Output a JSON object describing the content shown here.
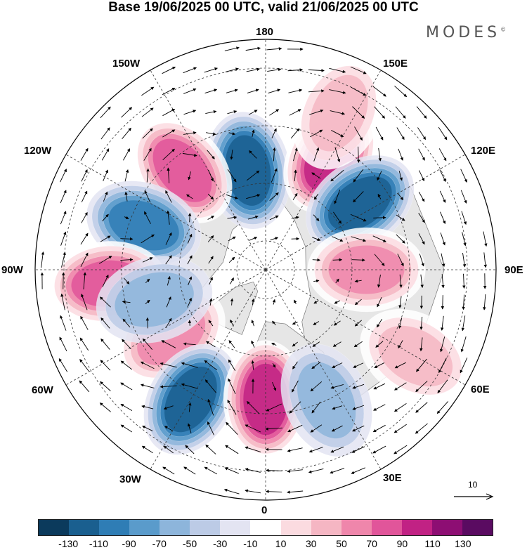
{
  "title": "Base 19/06/2025 00 UTC, valid 21/06/2025 00 UTC",
  "brand": "MODES",
  "brand_mark": "©",
  "longitude_labels": {
    "lon_180": "180",
    "lon_150E": "150E",
    "lon_120E": "120E",
    "lon_90E": "90E",
    "lon_60E": "60E",
    "lon_30E": "30E",
    "lon_0": "0",
    "lon_30W": "30W",
    "lon_60W": "60W",
    "lon_90W": "90W",
    "lon_120W": "120W",
    "lon_150W": "150W"
  },
  "reference_vector": {
    "value": "10"
  },
  "colorbar": {
    "colors": [
      "#0b3a5c",
      "#1a5f8f",
      "#2f7db5",
      "#5a9bcb",
      "#8db5db",
      "#bccbe6",
      "#e3e4f2",
      "#ffffff",
      "#fbdbe0",
      "#f5b6c3",
      "#ef86ab",
      "#e1559a",
      "#c12284",
      "#8d0e73",
      "#5a0b61"
    ],
    "tick_labels": [
      "-130",
      "-110",
      "-90",
      "-70",
      "-50",
      "-30",
      "-10",
      "10",
      "30",
      "50",
      "70",
      "90",
      "110",
      "130"
    ]
  },
  "anomaly_centers": [
    {
      "lon": -170,
      "lat": 55,
      "value": -90
    },
    {
      "lon": 150,
      "lat": 45,
      "value": 90
    },
    {
      "lon": -140,
      "lat": 45,
      "value": 70
    },
    {
      "lon": 125,
      "lat": 50,
      "value": -90
    },
    {
      "lon": -110,
      "lat": 45,
      "value": -70
    },
    {
      "lon": 90,
      "lat": 55,
      "value": 50
    },
    {
      "lon": -85,
      "lat": 35,
      "value": 70
    },
    {
      "lon": -55,
      "lat": 50,
      "value": 50
    },
    {
      "lon": -30,
      "lat": 38,
      "value": -90
    },
    {
      "lon": 0,
      "lat": 45,
      "value": 90
    },
    {
      "lon": 25,
      "lat": 40,
      "value": -30
    },
    {
      "lon": -75,
      "lat": 50,
      "value": -30
    },
    {
      "lon": 60,
      "lat": 30,
      "value": 30
    },
    {
      "lon": 155,
      "lat": 30,
      "value": 30
    }
  ]
}
